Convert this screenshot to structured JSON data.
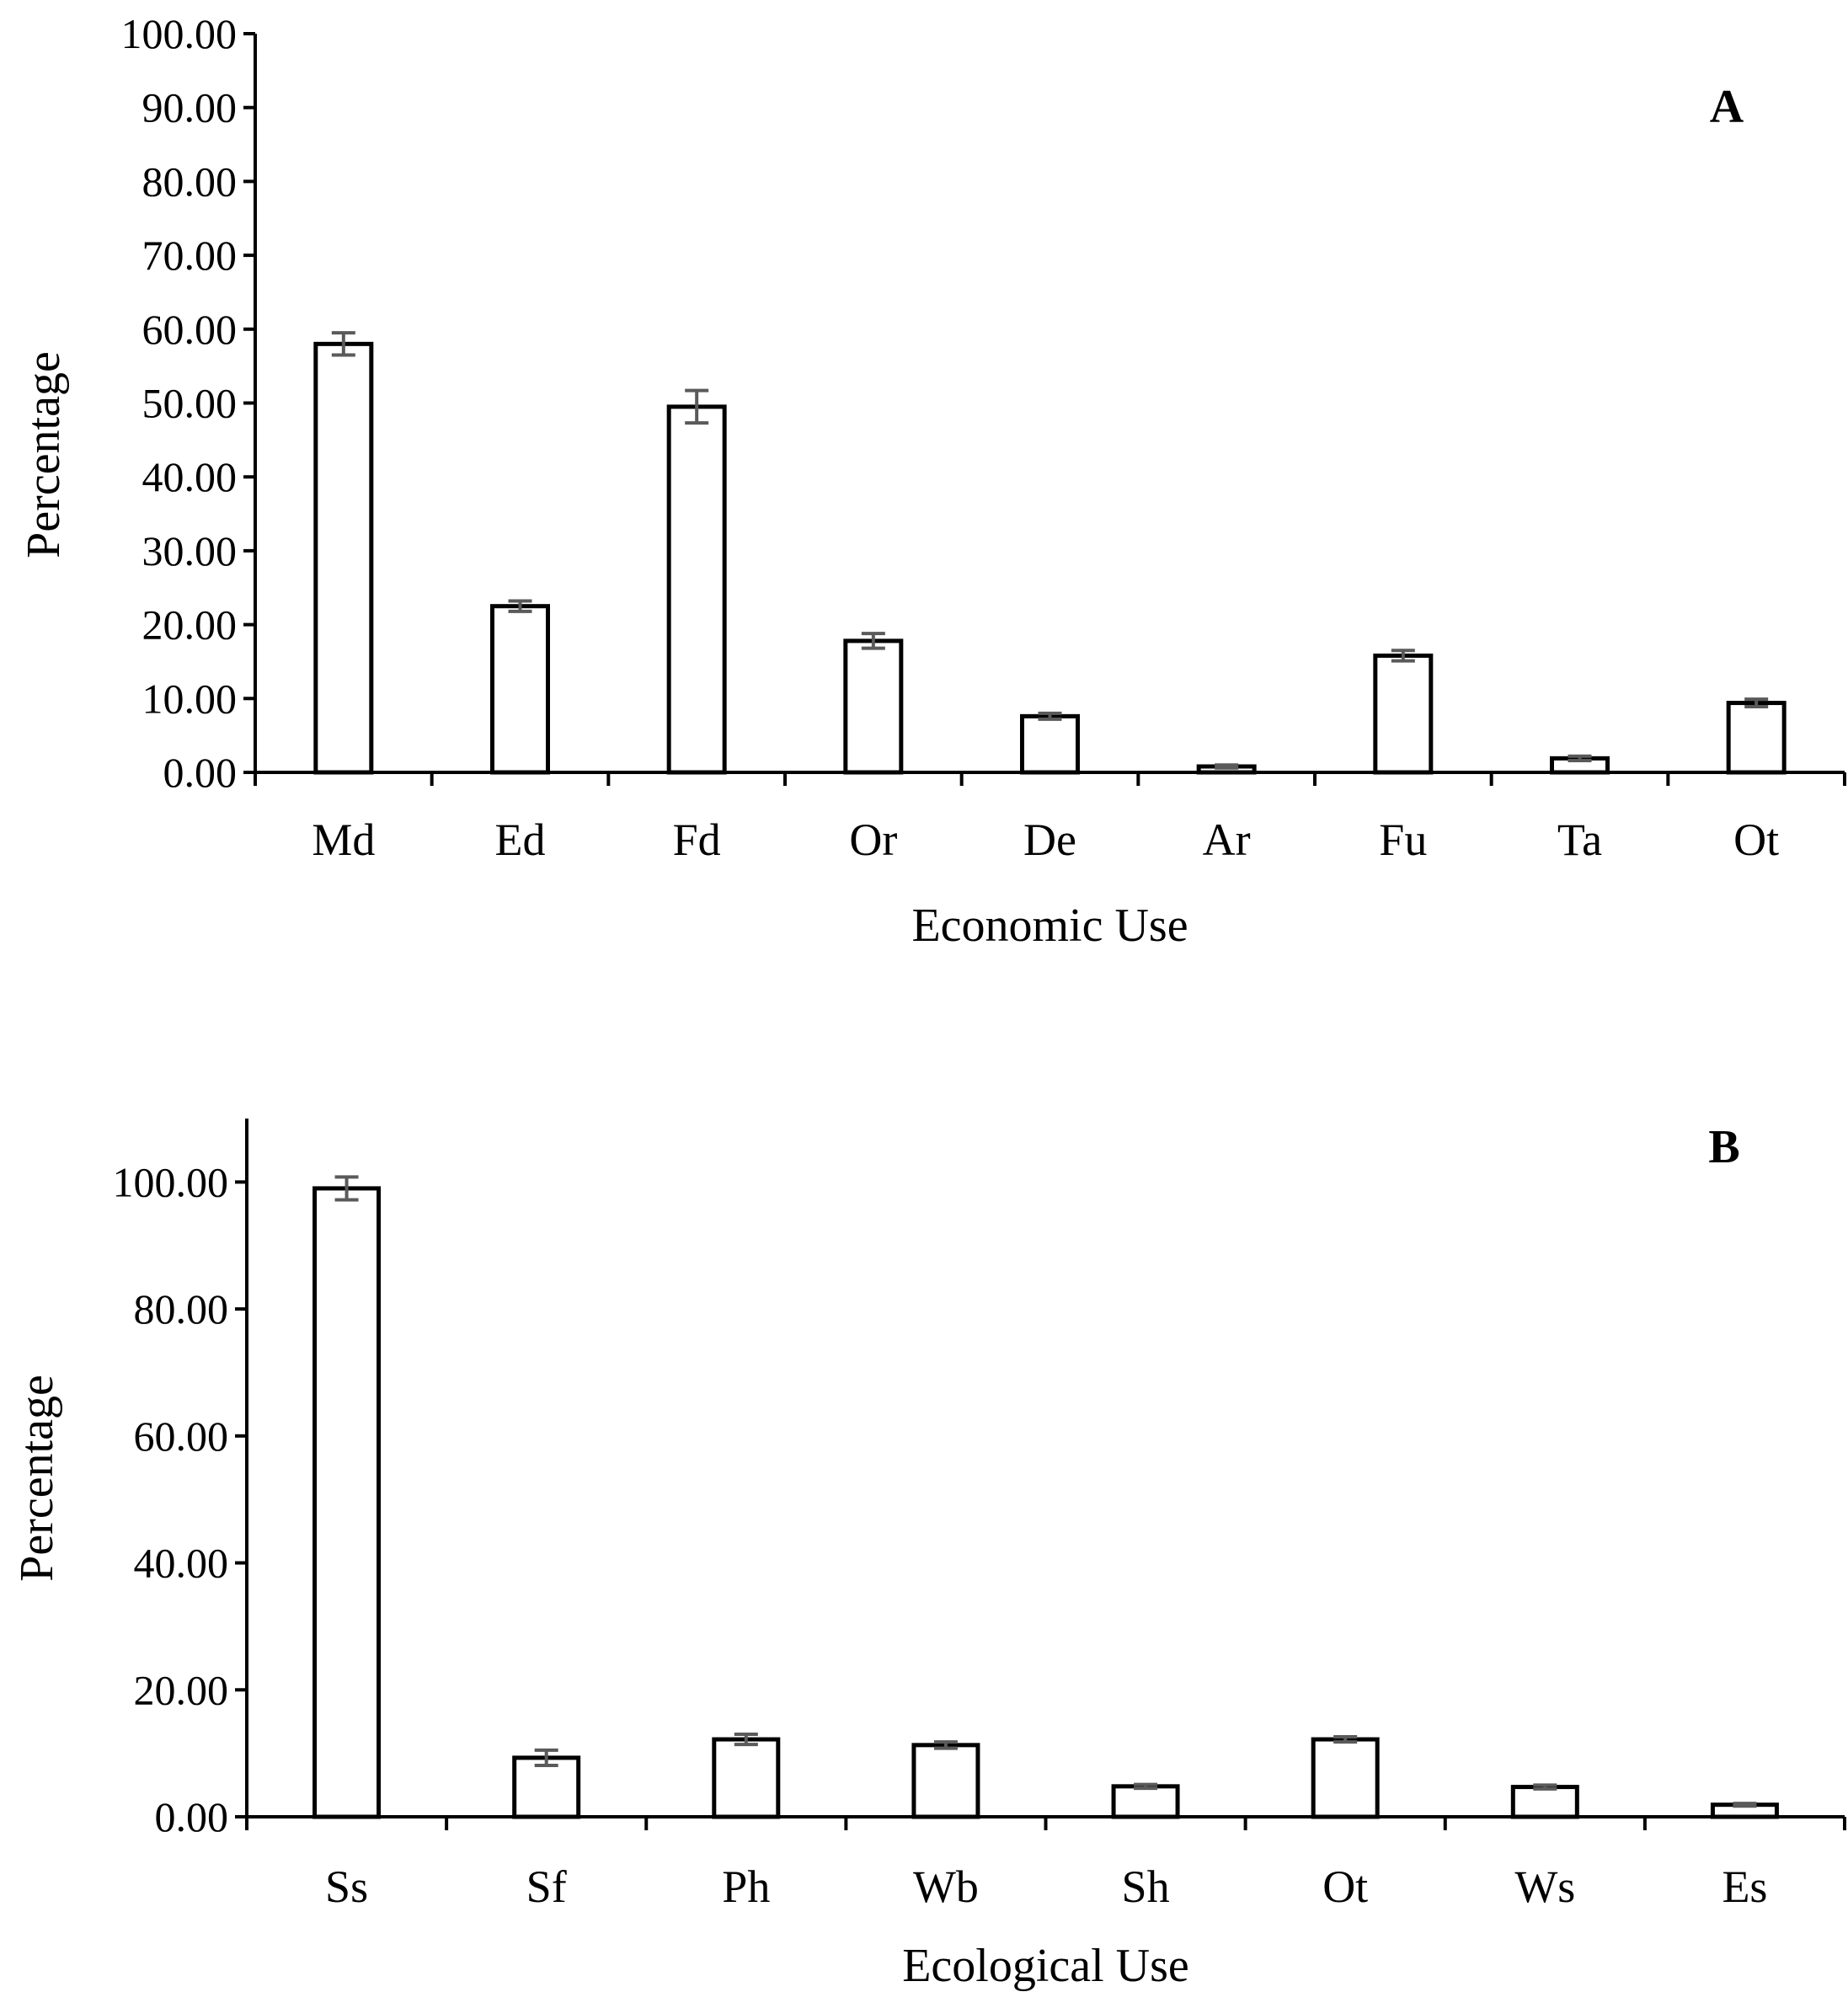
{
  "chart_data": [
    {
      "type": "bar",
      "panel_label": "A",
      "categories": [
        "Md",
        "Ed",
        "Fd",
        "Or",
        "De",
        "Ar",
        "Fu",
        "Ta",
        "Ot"
      ],
      "values": [
        58.0,
        22.5,
        49.5,
        17.8,
        7.6,
        0.8,
        15.8,
        1.9,
        9.4
      ],
      "errors": [
        1.5,
        0.7,
        2.2,
        1.0,
        0.4,
        0.2,
        0.7,
        0.3,
        0.5
      ],
      "xlabel": "Economic Use",
      "ylabel": "Percentage",
      "ylim": [
        0,
        100
      ],
      "yticks": [
        "0.00",
        "10.00",
        "20.00",
        "30.00",
        "40.00",
        "50.00",
        "60.00",
        "70.00",
        "80.00",
        "90.00",
        "100.00"
      ],
      "grid": false,
      "legend": false
    },
    {
      "type": "bar",
      "panel_label": "B",
      "categories": [
        "Ss",
        "Sf",
        "Ph",
        "Wb",
        "Sh",
        "Ot",
        "Ws",
        "Es"
      ],
      "values": [
        99.0,
        9.3,
        12.2,
        11.3,
        4.8,
        12.2,
        4.7,
        1.9
      ],
      "errors": [
        1.8,
        1.2,
        0.8,
        0.5,
        0.3,
        0.4,
        0.3,
        0.2
      ],
      "xlabel": "Ecological Use",
      "ylabel": "Percentage",
      "ylim": [
        0,
        110
      ],
      "yticks": [
        "0.00",
        "20.00",
        "40.00",
        "60.00",
        "80.00",
        "100.00"
      ],
      "grid": false,
      "legend": false
    }
  ]
}
